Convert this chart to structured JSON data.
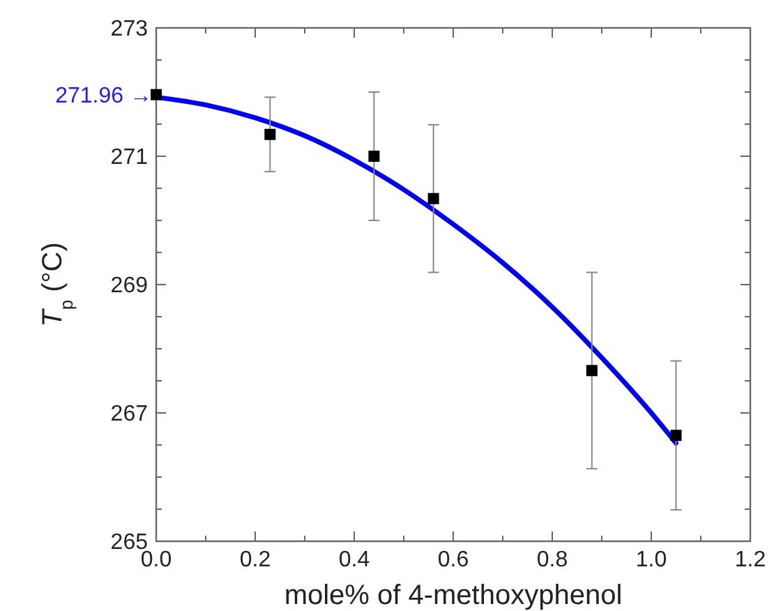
{
  "chart_data": {
    "type": "scatter",
    "xlabel": "mole% of 4-methoxyphenol",
    "ylabel": "T$_{p}$ (°C)",
    "xlim": [
      0,
      1.2
    ],
    "ylim": [
      265,
      273
    ],
    "xticks": [
      {
        "value": 0,
        "label": "0.0"
      },
      {
        "value": 0.1,
        "label": null
      },
      {
        "value": 0.2,
        "label": "0.2"
      },
      {
        "value": 0.3,
        "label": null
      },
      {
        "value": 0.4,
        "label": "0.4"
      },
      {
        "value": 0.5,
        "label": null
      },
      {
        "value": 0.6,
        "label": "0.6"
      },
      {
        "value": 0.7,
        "label": null
      },
      {
        "value": 0.8,
        "label": "0.8"
      },
      {
        "value": 0.9,
        "label": null
      },
      {
        "value": 1,
        "label": "1.0"
      },
      {
        "value": 1.1,
        "label": null
      },
      {
        "value": 1.2,
        "label": "1.2"
      }
    ],
    "yticks": [
      265,
      {
        "value": 265.5,
        "label": null
      },
      {
        "value": 266,
        "label": null
      },
      {
        "value": 266.5,
        "label": null
      },
      267,
      {
        "value": 267.5,
        "label": null
      },
      {
        "value": 268,
        "label": null
      },
      {
        "value": 268.5,
        "label": null
      },
      269,
      {
        "value": 269.5,
        "label": null
      },
      {
        "value": 270,
        "label": null
      },
      {
        "value": 270.5,
        "label": null
      },
      271,
      {
        "value": 271.5,
        "label": null
      },
      {
        "value": 272,
        "label": null
      },
      {
        "value": 272.5,
        "label": null
      },
      273
    ],
    "marker": "square",
    "series": [
      {
        "color": "#000000",
        "x": [
          0,
          0.23,
          0.44,
          0.56,
          0.88,
          1.05
        ],
        "values": [
          271.96,
          271.34,
          271.0,
          270.34,
          267.66,
          266.65
        ],
        "errors": [
          null,
          0.58,
          1.0,
          1.15,
          1.53,
          1.16
        ]
      },
      {
        "type": "line",
        "marker": "none",
        "color": "#0000ee",
        "x": [
          0,
          0.1,
          0.2,
          0.3,
          0.4,
          0.5,
          0.6,
          0.7,
          0.8,
          0.9,
          1.0,
          1.05
        ],
        "values": [
          271.92,
          271.8,
          271.6,
          271.32,
          270.94,
          270.48,
          269.94,
          269.34,
          268.65,
          267.86,
          267.0,
          266.53
        ]
      }
    ],
    "annotations": [
      {
        "text": "271.96 →",
        "x": 0,
        "y": 271.96
      }
    ]
  }
}
